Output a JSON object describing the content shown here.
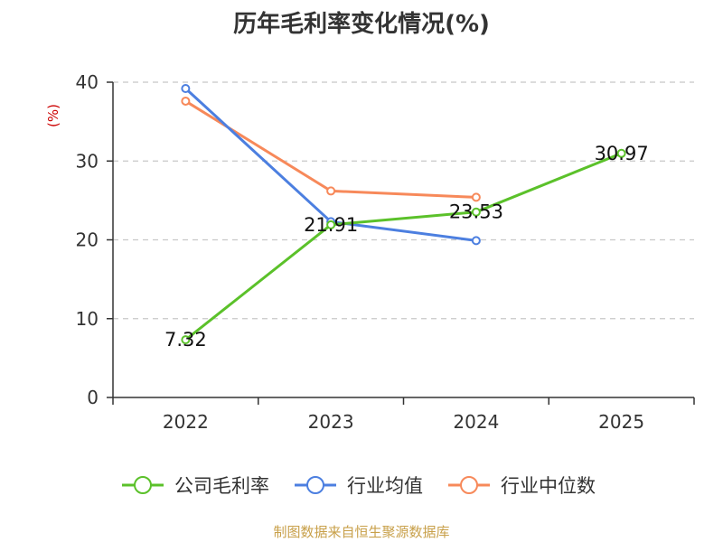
{
  "chart_data": {
    "type": "line",
    "title": "历年毛利率变化情况(%)",
    "ylabel": "(%)",
    "categories": [
      "2022",
      "2023",
      "2024",
      "2025"
    ],
    "ylim": [
      0,
      40
    ],
    "yticks": [
      0,
      10,
      20,
      30,
      40
    ],
    "grid": true,
    "legend_position": "bottom",
    "series": [
      {
        "name": "公司毛利率",
        "color": "#5bc12a",
        "values": [
          7.32,
          21.91,
          23.53,
          30.97
        ],
        "labels": [
          "7.32",
          "21.91",
          "23.53",
          "30.97"
        ]
      },
      {
        "name": "行业均值",
        "color": "#4c7fe0",
        "values": [
          39.2,
          22.3,
          19.9,
          null
        ]
      },
      {
        "name": "行业中位数",
        "color": "#f7895a",
        "values": [
          37.6,
          26.2,
          25.4,
          null
        ]
      }
    ]
  },
  "footer": {
    "source": "制图数据来自恒生聚源数据库"
  },
  "colors": {
    "axis": "#333333",
    "grid": "#c8c8c8",
    "unit": "#cc0000",
    "source": "#c8a04a"
  }
}
